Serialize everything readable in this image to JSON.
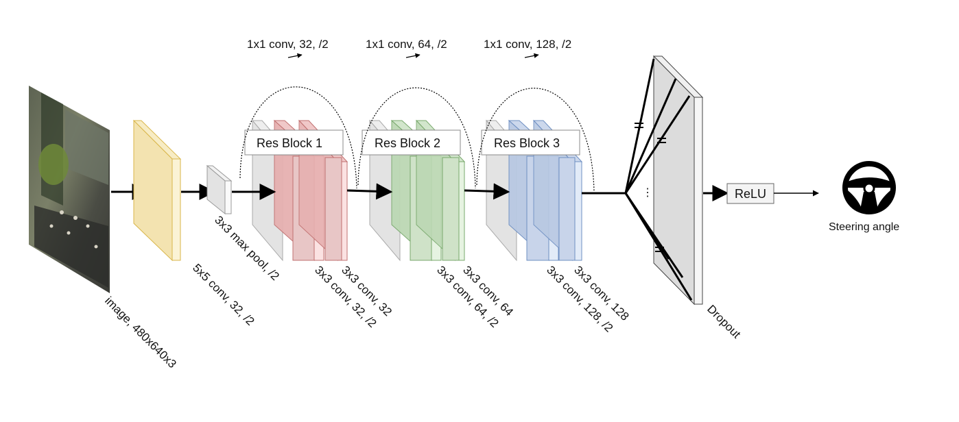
{
  "input": {
    "label": "image, 480x640x3"
  },
  "layers": {
    "conv5x5": "5x5 conv, 32, /2",
    "maxpool": "3x3 max pool, /2"
  },
  "res_blocks": [
    {
      "title": "Res Block 1",
      "shortcut": "1x1 conv, 32, /2",
      "conv_a": "3x3 conv, 32, /2",
      "conv_b": "3x3 conv, 32"
    },
    {
      "title": "Res Block 2",
      "shortcut": "1x1 conv, 64, /2",
      "conv_a": "3x3 conv, 64, /2",
      "conv_b": "3x3 conv, 64"
    },
    {
      "title": "Res Block 3",
      "shortcut": "1x1 conv, 128, /2",
      "conv_a": "3x3 conv, 128, /2",
      "conv_b": "3x3 conv, 128"
    }
  ],
  "dropout": {
    "label": "Dropout",
    "ellipsis": "⋮"
  },
  "activation": {
    "label": "ReLU"
  },
  "output": {
    "label": "Steering angle",
    "icon": "steering-wheel-icon"
  },
  "colors": {
    "conv_yellow": "#f3e3b0",
    "block1_red": "#e6b0b0",
    "block2_green": "#bcd8b4",
    "block3_blue": "#b8c8e2",
    "box_grey": "#e8e8e8"
  }
}
